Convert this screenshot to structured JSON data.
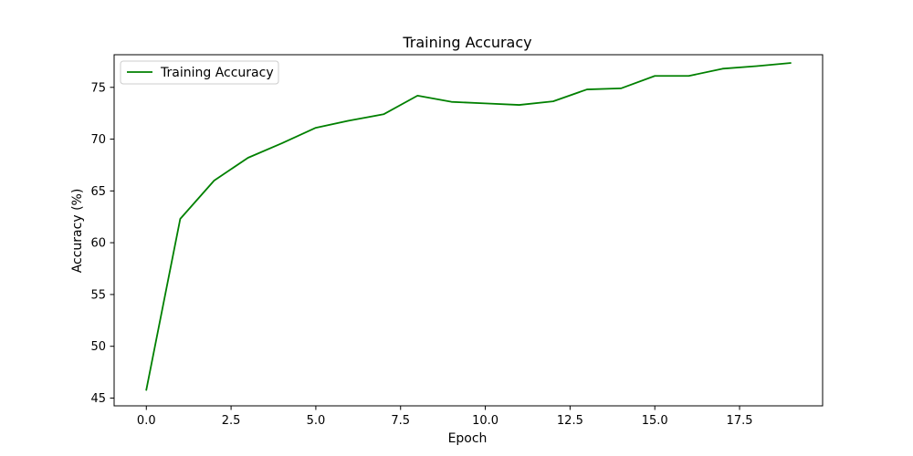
{
  "chart_data": {
    "type": "line",
    "title": "Training Accuracy",
    "xlabel": "Epoch",
    "ylabel": "Accuracy (%)",
    "xlim": [
      -0.95,
      19.95
    ],
    "ylim": [
      44.25,
      78.15
    ],
    "xticks": [
      0.0,
      2.5,
      5.0,
      7.5,
      10.0,
      12.5,
      15.0,
      17.5
    ],
    "xtick_labels": [
      "0.0",
      "2.5",
      "5.0",
      "7.5",
      "10.0",
      "12.5",
      "15.0",
      "17.5"
    ],
    "yticks": [
      45,
      50,
      55,
      60,
      65,
      70,
      75
    ],
    "ytick_labels": [
      "45",
      "50",
      "55",
      "60",
      "65",
      "70",
      "75"
    ],
    "grid": false,
    "legend_position": "top-left",
    "series": [
      {
        "name": "Training Accuracy",
        "color": "#008000",
        "x": [
          0,
          1,
          2,
          3,
          4,
          5,
          6,
          7,
          8,
          9,
          10,
          11,
          12,
          13,
          14,
          15,
          16,
          17,
          18,
          19
        ],
        "y": [
          45.8,
          62.3,
          66.0,
          68.2,
          69.6,
          71.1,
          71.8,
          72.4,
          74.2,
          73.6,
          73.45,
          73.3,
          73.65,
          74.8,
          74.9,
          76.1,
          76.1,
          76.8,
          77.05,
          77.35
        ]
      }
    ]
  }
}
